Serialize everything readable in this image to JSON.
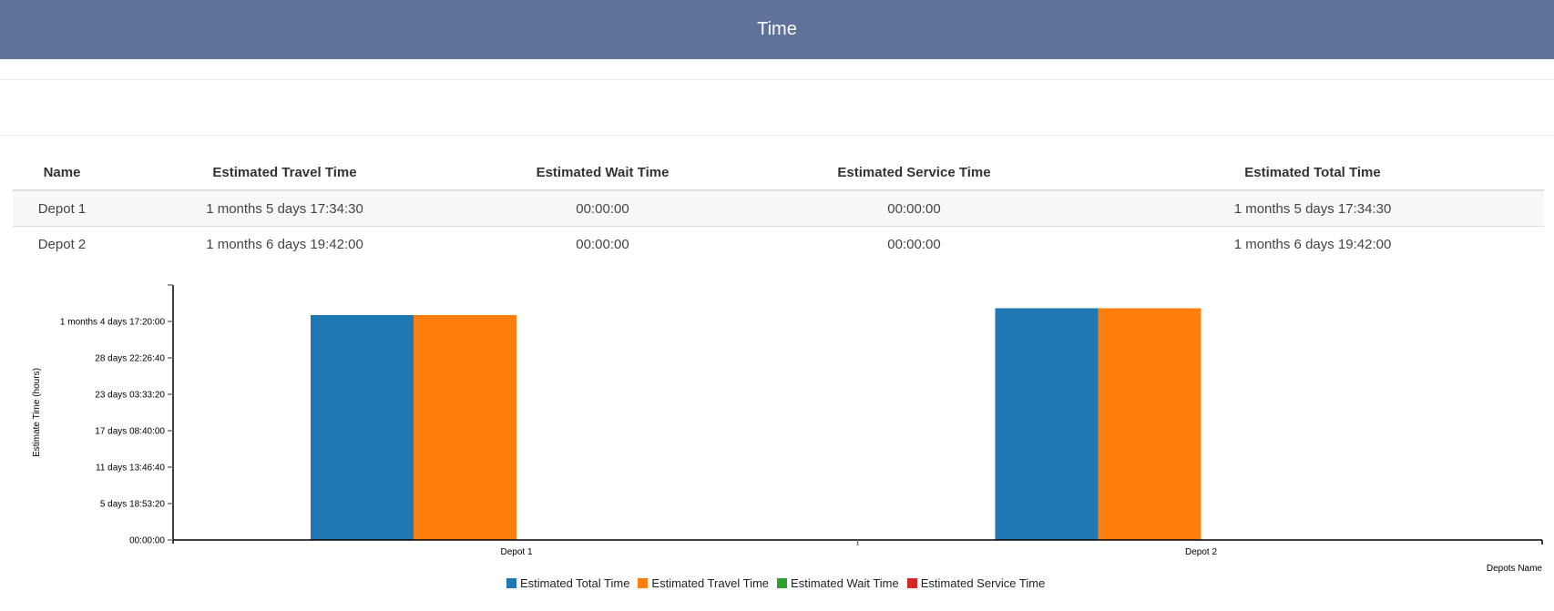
{
  "header": {
    "title": "Time"
  },
  "table": {
    "columns": [
      "Name",
      "Estimated Travel Time",
      "Estimated Wait Time",
      "Estimated Service Time",
      "Estimated Total Time"
    ],
    "rows": [
      {
        "name": "Depot 1",
        "travel": "1 months 5 days 17:34:30",
        "wait": "00:00:00",
        "service": "00:00:00",
        "total": "1 months 5 days 17:34:30"
      },
      {
        "name": "Depot 2",
        "travel": "1 months 6 days 19:42:00",
        "wait": "00:00:00",
        "service": "00:00:00",
        "total": "1 months 6 days 19:42:00"
      }
    ]
  },
  "colors": {
    "header_bg": "#5f7299",
    "total": "#1f77b4",
    "travel": "#ff7f0e",
    "wait": "#2ca02c",
    "service": "#d62728"
  },
  "chart_data": {
    "type": "bar",
    "title": "",
    "xlabel": "Depots Name",
    "ylabel": "Estimate Time (hours)",
    "categories": [
      "Depot 1",
      "Depot 2"
    ],
    "series": [
      {
        "name": "Estimated Total Time",
        "color": "#1f77b4",
        "values": [
          3087270,
          3181320
        ],
        "display": [
          "1 months 5 days 17:34:30",
          "1 months 6 days 19:42:00"
        ]
      },
      {
        "name": "Estimated Travel Time",
        "color": "#ff7f0e",
        "values": [
          3087270,
          3181320
        ],
        "display": [
          "1 months 5 days 17:34:30",
          "1 months 6 days 19:42:00"
        ]
      },
      {
        "name": "Estimated Wait Time",
        "color": "#2ca02c",
        "values": [
          0,
          0
        ],
        "display": [
          "00:00:00",
          "00:00:00"
        ]
      },
      {
        "name": "Estimated Service Time",
        "color": "#d62728",
        "values": [
          0,
          0
        ],
        "display": [
          "00:00:00",
          "00:00:00"
        ]
      }
    ],
    "value_unit": "seconds",
    "ylim": [
      0,
      3500000
    ],
    "y_ticks": [
      {
        "value": 0,
        "label": "00:00:00"
      },
      {
        "value": 500000,
        "label": "5 days 18:53:20"
      },
      {
        "value": 1000000,
        "label": "11 days 13:46:40"
      },
      {
        "value": 1500000,
        "label": "17 days 08:40:00"
      },
      {
        "value": 2000000,
        "label": "23 days 03:33:20"
      },
      {
        "value": 2500000,
        "label": "28 days 22:26:40"
      },
      {
        "value": 3000000,
        "label": "1 months 4 days 17:20:00"
      }
    ],
    "grid": false,
    "legend_position": "bottom"
  },
  "legend": [
    {
      "label": "Estimated Total Time",
      "color": "#1f77b4"
    },
    {
      "label": "Estimated Travel Time",
      "color": "#ff7f0e"
    },
    {
      "label": "Estimated Wait Time",
      "color": "#2ca02c"
    },
    {
      "label": "Estimated Service Time",
      "color": "#d62728"
    }
  ]
}
